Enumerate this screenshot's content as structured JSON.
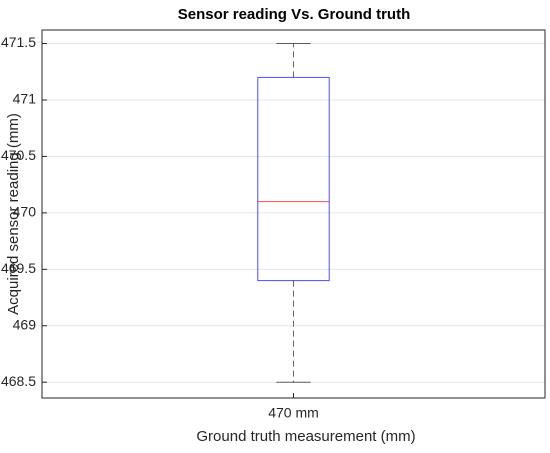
{
  "chart_data": {
    "type": "box",
    "title": "Sensor reading Vs. Ground truth",
    "x_label": "Ground truth measurement (mm)",
    "y_label": "Acquired sensor reading (mm)",
    "categories": [
      "470 mm"
    ],
    "boxes": [
      {
        "min": 468.5,
        "q1": 469.4,
        "median": 470.1,
        "q3": 471.2,
        "max": 471.5
      }
    ],
    "box_color": "#0000ff",
    "median_color": "#ff0000",
    "whisker_color": "#000000",
    "ylim": [
      468.36,
      471.62
    ],
    "yticks": [
      468.5,
      469,
      469.5,
      470,
      470.5,
      471,
      471.5
    ],
    "grid": true
  }
}
